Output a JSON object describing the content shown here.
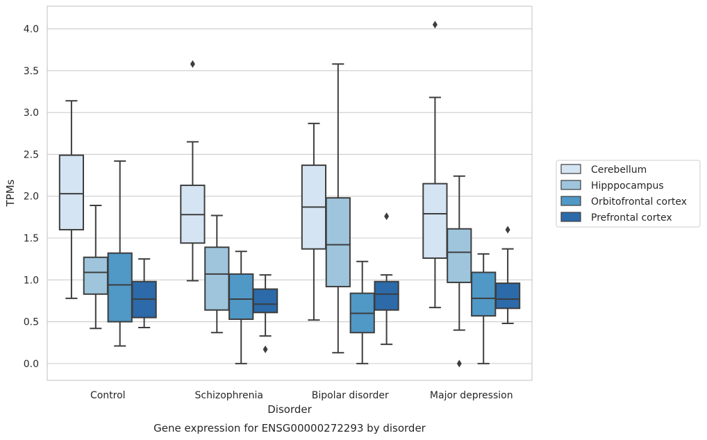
{
  "chart_data": {
    "type": "box",
    "caption": "Gene expression for ENSG00000272293 by disorder",
    "xlabel": "Disorder",
    "ylabel": "TPMs",
    "ylim": [
      -0.2,
      4.27
    ],
    "yticks": [
      "0.0",
      "0.5",
      "1.0",
      "1.5",
      "2.0",
      "2.5",
      "3.0",
      "3.5",
      "4.0"
    ],
    "grid": true,
    "legend_position": "right",
    "categories": [
      "Control",
      "Schizophrenia",
      "Bipolar disorder",
      "Major depression"
    ],
    "series": [
      {
        "name": "Cerebellum",
        "color": "#d5e4f3",
        "boxes": [
          {
            "whislo": 0.78,
            "q1": 1.6,
            "med": 2.03,
            "q3": 2.49,
            "whishi": 3.14,
            "fliers": []
          },
          {
            "whislo": 0.99,
            "q1": 1.44,
            "med": 1.78,
            "q3": 2.13,
            "whishi": 2.65,
            "fliers": [
              3.58
            ]
          },
          {
            "whislo": 0.52,
            "q1": 1.37,
            "med": 1.87,
            "q3": 2.37,
            "whishi": 2.87,
            "fliers": []
          },
          {
            "whislo": 0.67,
            "q1": 1.26,
            "med": 1.79,
            "q3": 2.15,
            "whishi": 3.18,
            "fliers": [
              4.05
            ]
          }
        ]
      },
      {
        "name": "Hipppocampus",
        "color": "#9ec5dc",
        "boxes": [
          {
            "whislo": 0.42,
            "q1": 0.83,
            "med": 1.09,
            "q3": 1.27,
            "whishi": 1.89,
            "fliers": []
          },
          {
            "whislo": 0.37,
            "q1": 0.64,
            "med": 1.07,
            "q3": 1.39,
            "whishi": 1.77,
            "fliers": []
          },
          {
            "whislo": 0.13,
            "q1": 0.92,
            "med": 1.42,
            "q3": 1.98,
            "whishi": 3.58,
            "fliers": []
          },
          {
            "whislo": 0.4,
            "q1": 0.97,
            "med": 1.33,
            "q3": 1.61,
            "whishi": 2.24,
            "fliers": [
              0.0
            ]
          }
        ]
      },
      {
        "name": "Orbitofrontal cortex",
        "color": "#5098c6",
        "boxes": [
          {
            "whislo": 0.21,
            "q1": 0.5,
            "med": 0.94,
            "q3": 1.32,
            "whishi": 2.42,
            "fliers": []
          },
          {
            "whislo": 0.0,
            "q1": 0.53,
            "med": 0.77,
            "q3": 1.07,
            "whishi": 1.34,
            "fliers": []
          },
          {
            "whislo": 0.0,
            "q1": 0.37,
            "med": 0.6,
            "q3": 0.84,
            "whishi": 1.22,
            "fliers": []
          },
          {
            "whislo": 0.0,
            "q1": 0.57,
            "med": 0.78,
            "q3": 1.09,
            "whishi": 1.31,
            "fliers": []
          }
        ]
      },
      {
        "name": "Prefrontal cortex",
        "color": "#2c6aa9",
        "boxes": [
          {
            "whislo": 0.43,
            "q1": 0.55,
            "med": 0.77,
            "q3": 0.98,
            "whishi": 1.25,
            "fliers": []
          },
          {
            "whislo": 0.33,
            "q1": 0.61,
            "med": 0.71,
            "q3": 0.89,
            "whishi": 1.06,
            "fliers": [
              0.17
            ]
          },
          {
            "whislo": 0.23,
            "q1": 0.64,
            "med": 0.83,
            "q3": 0.98,
            "whishi": 1.06,
            "fliers": [
              1.76
            ]
          },
          {
            "whislo": 0.48,
            "q1": 0.66,
            "med": 0.77,
            "q3": 0.96,
            "whishi": 1.37,
            "fliers": [
              1.6
            ]
          }
        ]
      }
    ]
  }
}
